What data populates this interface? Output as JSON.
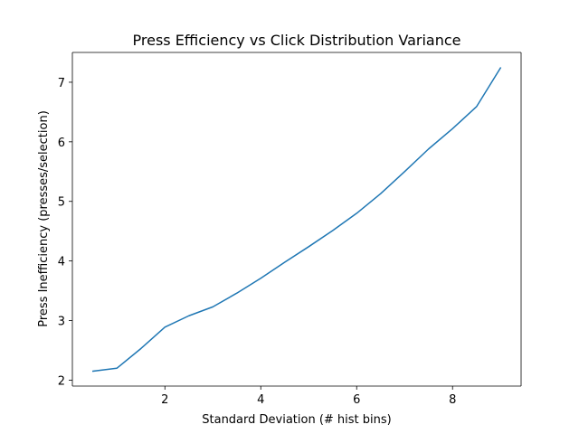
{
  "chart_data": {
    "type": "line",
    "title": "Press Efficiency vs Click Distribution Variance",
    "xlabel": "Standard Deviation (# hist bins)",
    "ylabel": "Press Inefficiency (presses/selection)",
    "xlim": [
      0.07,
      9.43
    ],
    "ylim": [
      1.9,
      7.5
    ],
    "x_ticks": [
      2,
      4,
      6,
      8
    ],
    "y_ticks": [
      2,
      3,
      4,
      5,
      6,
      7
    ],
    "grid": false,
    "series": [
      {
        "color": "#1f77b4",
        "x": [
          0.5,
          1.0,
          1.5,
          2.0,
          2.5,
          3.0,
          3.5,
          4.0,
          4.5,
          5.0,
          5.5,
          6.0,
          6.5,
          7.0,
          7.5,
          8.0,
          8.5,
          9.0
        ],
        "y": [
          2.15,
          2.2,
          2.53,
          2.89,
          3.08,
          3.23,
          3.46,
          3.71,
          3.98,
          4.24,
          4.51,
          4.8,
          5.13,
          5.5,
          5.88,
          6.22,
          6.59,
          7.24
        ]
      }
    ]
  }
}
